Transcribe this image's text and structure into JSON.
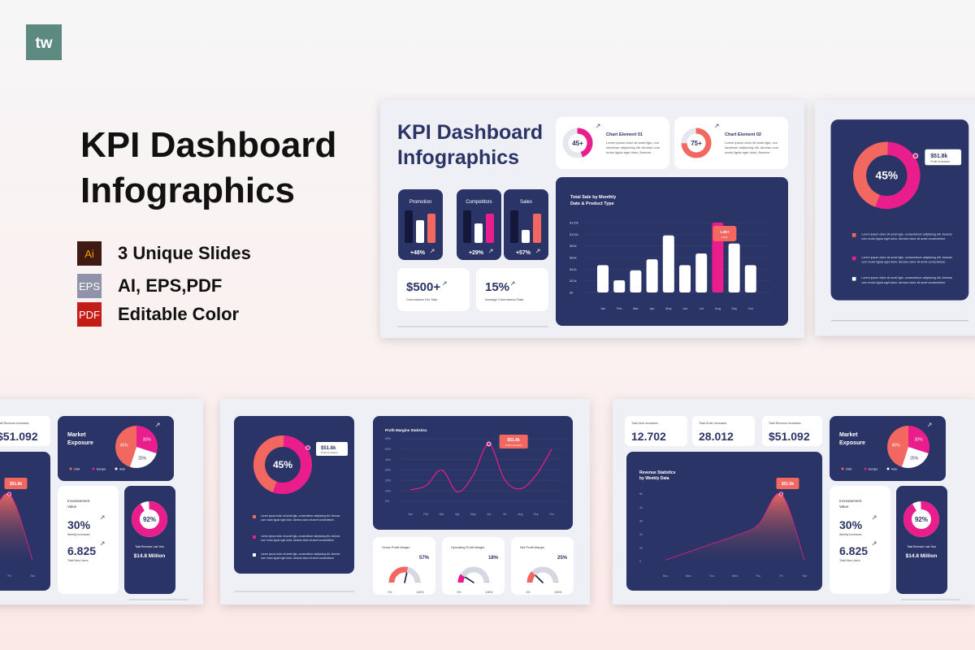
{
  "logo": "tw",
  "hero": {
    "title_lines": [
      "KPI Dashboard",
      "Infographics"
    ],
    "features": [
      {
        "icon": "Ai",
        "text": "3 Unique Slides"
      },
      {
        "icon": "EPS",
        "text": "AI, EPS,PDF"
      },
      {
        "icon": "PDF",
        "text": "Editable Color"
      }
    ]
  },
  "kpi_slide": {
    "title_lines": [
      "KPI Dashboard",
      "Infographics"
    ],
    "chart_elements": [
      {
        "type": "donut",
        "value": 45,
        "label": "45+",
        "color": "#e91e8c",
        "title": "Chart Element 01",
        "text_lines": [
          "Lorem ipsum dolor sit amet ligis, con",
          "sectetuer adipiscing elit. Aenean com",
          "modo ligula eget dolor. Aenean."
        ]
      },
      {
        "type": "donut",
        "value": 75,
        "label": "75+",
        "color": "#f2675f",
        "title": "Chart Element 02",
        "text_lines": [
          "Lorem ipsum dolor sit amet ligis, con",
          "sectetuer adipiscing elit. Aenean com",
          "modo ligula eget dolor. Aenean."
        ]
      }
    ],
    "mini_charts": [
      {
        "type": "bar",
        "label": "Promotion",
        "values": [
          10,
          7,
          9
        ],
        "colors": [
          "#14173a",
          "#ffffff",
          "#f2675f"
        ],
        "ylim": [
          0,
          10
        ],
        "value_label": "+48%"
      },
      {
        "type": "bar",
        "label": "Competitors",
        "values": [
          10,
          6,
          9
        ],
        "colors": [
          "#14173a",
          "#ffffff",
          "#e91e8c"
        ],
        "ylim": [
          0,
          10
        ],
        "value_label": "+29%"
      },
      {
        "type": "bar",
        "label": "Sales",
        "values": [
          10,
          4,
          9
        ],
        "colors": [
          "#14173a",
          "#ffffff",
          "#f2675f"
        ],
        "ylim": [
          0,
          10
        ],
        "value_label": "+57%"
      }
    ],
    "stats": [
      {
        "value": "$500+",
        "label": "Commission Per Sale"
      },
      {
        "value": "15%",
        "label": "Average Commission Rate"
      }
    ],
    "sales_chart": {
      "type": "bar",
      "title_lines": [
        "Total Sale by Monthly",
        "Date & Product Type"
      ],
      "categories": [
        "Jan",
        "Feb",
        "Mar",
        "Apr",
        "May",
        "Jun",
        "Jul",
        "Aug",
        "Sep",
        "Oct"
      ],
      "values": [
        47,
        21,
        38,
        57,
        98,
        47,
        67,
        120,
        84,
        47
      ],
      "colors": [
        "#ffffff",
        "#ffffff",
        "#ffffff",
        "#ffffff",
        "#ffffff",
        "#ffffff",
        "#ffffff",
        "#e91e8c",
        "#ffffff",
        "#ffffff"
      ],
      "ylim": [
        0,
        120
      ],
      "yticks": [
        {
          "value": 0,
          "label": "$0"
        },
        {
          "value": 20,
          "label": "$20k"
        },
        {
          "value": 40,
          "label": "$40k"
        },
        {
          "value": 60,
          "label": "$60k"
        },
        {
          "value": 80,
          "label": "$80k"
        },
        {
          "value": 100,
          "label": "$100k"
        },
        {
          "value": 120,
          "label": "$120k"
        }
      ],
      "grid": true,
      "tooltip": {
        "value": "1.8k+",
        "label": "Profit"
      }
    }
  },
  "profit_slide": {
    "donut": {
      "type": "donut",
      "value": 45,
      "label": "45%",
      "color": "#f2675f",
      "track_color": "#e91e8c",
      "tooltip": {
        "value": "$51.8k",
        "label": "Profit Increases"
      },
      "legend": [
        {
          "color": "#f2675f",
          "text_lines": [
            "Lorem ipsum dolor sit amet ligis, consectetuer adipiscing elit. Aenean",
            "com modo ligula eget dolor. Aenean dolor sit amet consectetuer."
          ]
        },
        {
          "color": "#e91e8c",
          "text_lines": [
            "Lorem ipsum dolor sit amet ligis, consectetuer adipiscing elit. Aenean",
            "com modo ligula eget dolor. Aenean dolor sit amet consectetuer."
          ]
        },
        {
          "color": "#ffffff",
          "text_lines": [
            "Lorem ipsum dolor sit amet ligis, consectetuer adipiscing elit. Aenean",
            "com modo ligula eget dolor. Aenean dolor sit amet consectetuer."
          ]
        }
      ]
    },
    "line_chart": {
      "type": "line",
      "title": "Profit Margins Statistics",
      "categories": [
        "Jan",
        "Feb",
        "Mar",
        "Apr",
        "May",
        "Jun",
        "Jul",
        "Aug",
        "Sep",
        "Oct"
      ],
      "values": [
        11,
        15,
        30,
        9,
        25,
        55,
        21,
        12,
        25,
        50
      ],
      "color": "#e91e8c",
      "ylim": [
        0,
        60
      ],
      "yticks": [
        {
          "value": 0,
          "label": "0%"
        },
        {
          "value": 10,
          "label": "10%"
        },
        {
          "value": 20,
          "label": "20%"
        },
        {
          "value": 30,
          "label": "30%"
        },
        {
          "value": 40,
          "label": "40%"
        },
        {
          "value": 50,
          "label": "50%"
        },
        {
          "value": 60,
          "label": "60%"
        }
      ],
      "grid": true,
      "tooltip": {
        "value": "$51.6k",
        "label": "Profit Increases"
      }
    },
    "gauges": [
      {
        "type": "gauge",
        "title": "Gross Profit Margin",
        "value": 57,
        "label": "57%",
        "color": "#f2675f",
        "scale": [
          {
            "value": 0,
            "label": "0%"
          },
          {
            "value": 100,
            "label": "100%"
          }
        ]
      },
      {
        "type": "gauge",
        "title": "Operating Profit Margin",
        "value": 18,
        "label": "18%",
        "color": "#e91e8c",
        "scale": [
          {
            "value": 0,
            "label": "0%"
          },
          {
            "value": 100,
            "label": "100%"
          }
        ]
      },
      {
        "type": "gauge",
        "title": "Net Profit Margin",
        "value": 25,
        "label": "25%",
        "color": "#f2675f",
        "scale": [
          {
            "value": 0,
            "label": "0%"
          },
          {
            "value": 100,
            "label": "100%"
          }
        ]
      }
    ]
  },
  "revenue_slide": {
    "stats": [
      {
        "label": "Total User Increases",
        "value": "12.702"
      },
      {
        "label": "Total Order Increases",
        "value": "28.012"
      },
      {
        "label": "Total Revenue Increases",
        "value": "$51.092"
      }
    ],
    "area_chart": {
      "type": "area",
      "title_lines": [
        "Revenue Statistics",
        "by Weekly Data"
      ],
      "categories": [
        "Sun",
        "Mon",
        "Tue",
        "Wed",
        "Thu",
        "Fri",
        "Sat"
      ],
      "values": [
        0.1,
        0.7,
        1.3,
        1.9,
        2.7,
        5,
        0.1
      ],
      "color": "#f2675f",
      "ylim": [
        0,
        5
      ],
      "yticks": [
        0,
        {
          "value": 1,
          "label": "1k"
        },
        {
          "value": 2,
          "label": "2k"
        },
        {
          "value": 3,
          "label": "3k"
        },
        {
          "value": 4,
          "label": "4k"
        },
        {
          "value": 5,
          "label": "5k"
        }
      ],
      "tooltip": {
        "value": "$51.6k"
      }
    },
    "market": {
      "type": "pie",
      "title_lines": [
        "Market",
        "Exposure"
      ],
      "categories": [
        "USA",
        "Europe",
        "Asia"
      ],
      "values": [
        45,
        30,
        25
      ],
      "value_labels": [
        "45%",
        "30%",
        "25%"
      ],
      "colors": [
        "#f2675f",
        "#e91e8c",
        "#ffffff"
      ]
    },
    "increase": {
      "title_lines": [
        "Increasement",
        "Value"
      ],
      "items": [
        {
          "value": "30%",
          "label": "Weekly Increases"
        },
        {
          "value": "6.825",
          "label": "Total New Users"
        }
      ]
    },
    "revenue_donut": {
      "type": "donut",
      "value": 92,
      "label": "92%",
      "color": "#e91e8c",
      "caption": "Total Revenue Last Year",
      "total": "$14.8 Million"
    }
  }
}
